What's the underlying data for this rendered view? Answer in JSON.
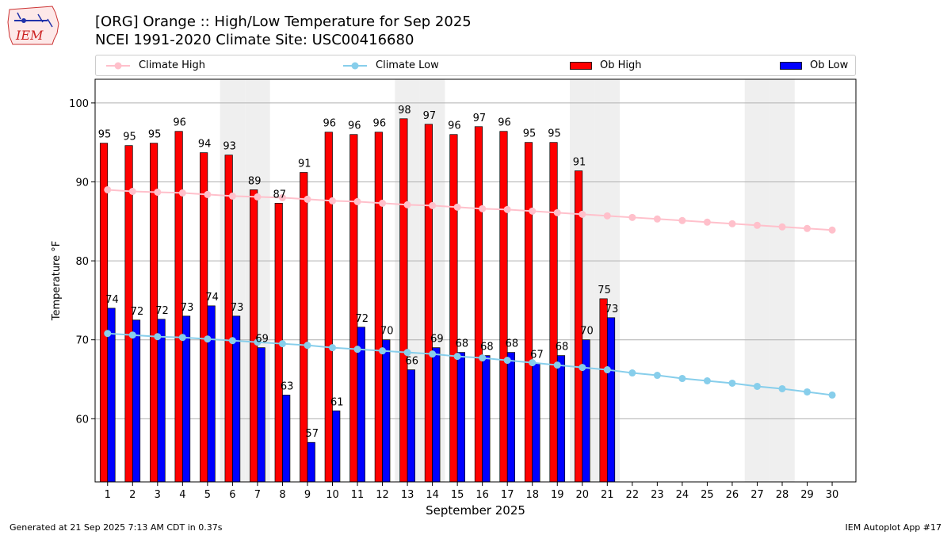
{
  "header": {
    "title_line1": "[ORG] Orange :: High/Low Temperature for Sep 2025",
    "title_line2": "NCEI 1991-2020 Climate Site: USC00416680",
    "logo_text": "IEM"
  },
  "legend": {
    "items": [
      {
        "label": "Climate High",
        "color": "#ffc0cb",
        "kind": "line"
      },
      {
        "label": "Climate Low",
        "color": "#87ceeb",
        "kind": "line"
      },
      {
        "label": "Ob High",
        "color": "#ff0000",
        "kind": "bar"
      },
      {
        "label": "Ob Low",
        "color": "#0000ff",
        "kind": "bar"
      }
    ]
  },
  "footer": {
    "left": "Generated at 21 Sep 2025 7:13 AM CDT in 0.37s",
    "right": "IEM Autoplot App #17"
  },
  "chart_data": {
    "type": "bar",
    "xlabel": "September 2025",
    "ylabel": "Temperature °F",
    "ylim": [
      52,
      103
    ],
    "yticks": [
      60,
      70,
      80,
      90,
      100
    ],
    "grid": "horizontal",
    "legend_position": "top",
    "weekend_shading_days": [
      6,
      7,
      13,
      14,
      20,
      21,
      27,
      28
    ],
    "days": [
      1,
      2,
      3,
      4,
      5,
      6,
      7,
      8,
      9,
      10,
      11,
      12,
      13,
      14,
      15,
      16,
      17,
      18,
      19,
      20,
      21,
      22,
      23,
      24,
      25,
      26,
      27,
      28,
      29,
      30
    ],
    "series": [
      {
        "name": "Ob High",
        "kind": "bar",
        "color": "#ff0000",
        "values": [
          95,
          95,
          95,
          96,
          94,
          93,
          89,
          87,
          91,
          96,
          96,
          96,
          98,
          97,
          96,
          97,
          96,
          95,
          95,
          91,
          75
        ],
        "plotted": [
          94.9,
          94.6,
          94.9,
          96.4,
          93.7,
          93.4,
          89.0,
          87.3,
          91.2,
          96.3,
          96.0,
          96.3,
          98.0,
          97.3,
          96.0,
          97.0,
          96.4,
          95.0,
          95.0,
          91.4,
          75.2
        ]
      },
      {
        "name": "Ob Low",
        "kind": "bar",
        "color": "#0000ff",
        "values": [
          74,
          72,
          72,
          73,
          74,
          73,
          69,
          63,
          57,
          61,
          72,
          70,
          66,
          69,
          68,
          68,
          68,
          67,
          68,
          70,
          73
        ],
        "plotted": [
          74.0,
          72.5,
          72.6,
          73.0,
          74.3,
          73.0,
          69.0,
          63.0,
          57.0,
          61.0,
          71.6,
          70.0,
          66.2,
          69.0,
          68.4,
          68.0,
          68.4,
          67.0,
          68.0,
          70.0,
          72.8
        ]
      },
      {
        "name": "Climate High",
        "kind": "line",
        "color": "#ffc0cb",
        "values": [
          89.0,
          88.8,
          88.7,
          88.6,
          88.4,
          88.2,
          88.1,
          88.0,
          87.8,
          87.6,
          87.5,
          87.3,
          87.1,
          87.0,
          86.8,
          86.6,
          86.5,
          86.3,
          86.1,
          85.9,
          85.7,
          85.5,
          85.3,
          85.1,
          84.9,
          84.7,
          84.5,
          84.3,
          84.1,
          83.9
        ]
      },
      {
        "name": "Climate Low",
        "kind": "line",
        "color": "#87ceeb",
        "values": [
          70.8,
          70.6,
          70.4,
          70.3,
          70.1,
          69.9,
          69.7,
          69.5,
          69.3,
          69.0,
          68.8,
          68.6,
          68.4,
          68.2,
          67.9,
          67.7,
          67.4,
          67.1,
          66.8,
          66.5,
          66.2,
          65.8,
          65.5,
          65.1,
          64.8,
          64.5,
          64.1,
          63.8,
          63.4,
          63.0
        ]
      }
    ]
  }
}
